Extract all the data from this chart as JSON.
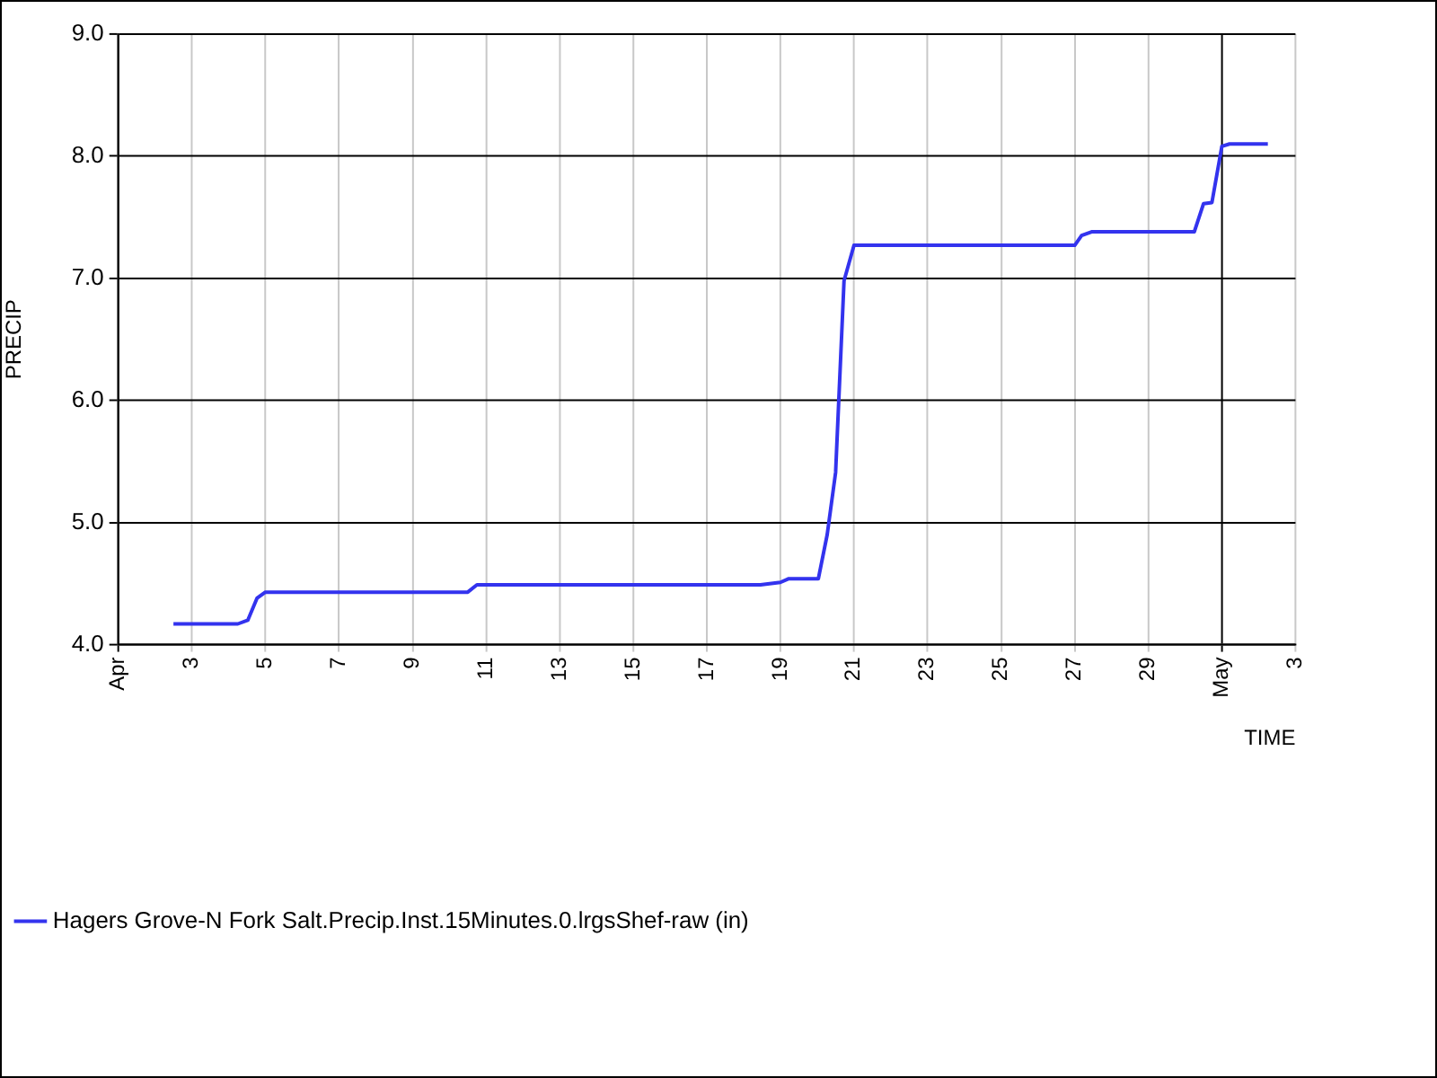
{
  "chart_data": {
    "type": "line",
    "xlabel": "TIME",
    "ylabel": "PRECIP",
    "x": [
      "--04-02T12:00",
      "--04-04T06:00",
      "--04-04T12:30",
      "--04-04T18:30",
      "--04-05T00:00",
      "--04-10T12:00",
      "--04-10T18:00",
      "--04-18T11:00",
      "--04-19T00:00",
      "--04-19T05:30",
      "--04-20T00:45",
      "--04-20T06:30",
      "--04-20T12:00",
      "--04-20T17:30",
      "--04-21T00:00",
      "--04-27T00:00",
      "--04-27T04:30",
      "--04-27T11:00",
      "--04-30T06:00",
      "--04-30T12:00",
      "--04-30T17:30",
      "--05-01T00:00",
      "--05-01T05:00",
      "--05-02T06:00"
    ],
    "series": [
      {
        "name": "Hagers Grove-N Fork Salt.Precip.Inst.15Minutes.0.lrgsShef-raw (in)",
        "color": "#3333ee",
        "values": [
          4.17,
          4.17,
          4.2,
          4.38,
          4.43,
          4.43,
          4.49,
          4.49,
          4.51,
          4.54,
          4.54,
          4.9,
          5.41,
          6.98,
          7.27,
          7.27,
          7.35,
          7.38,
          7.38,
          7.61,
          7.62,
          8.08,
          8.1,
          8.1
        ]
      }
    ],
    "xlim": [
      "--04-01",
      "--05-03"
    ],
    "xticks": [
      {
        "value": "--04-01",
        "label": "Apr"
      },
      {
        "value": "--04-03",
        "label": "3"
      },
      {
        "value": "--04-05",
        "label": "5"
      },
      {
        "value": "--04-07",
        "label": "7"
      },
      {
        "value": "--04-09",
        "label": "9"
      },
      {
        "value": "--04-11",
        "label": "11"
      },
      {
        "value": "--04-13",
        "label": "13"
      },
      {
        "value": "--04-15",
        "label": "15"
      },
      {
        "value": "--04-17",
        "label": "17"
      },
      {
        "value": "--04-19",
        "label": "19"
      },
      {
        "value": "--04-21",
        "label": "21"
      },
      {
        "value": "--04-23",
        "label": "23"
      },
      {
        "value": "--04-25",
        "label": "25"
      },
      {
        "value": "--04-27",
        "label": "27"
      },
      {
        "value": "--04-29",
        "label": "29"
      },
      {
        "value": "--05-01",
        "label": "May"
      },
      {
        "value": "--05-03",
        "label": "3"
      }
    ],
    "ylim": [
      4,
      9
    ],
    "yticks": [
      {
        "value": 4,
        "label": "4.0"
      },
      {
        "value": 5,
        "label": "5.0"
      },
      {
        "value": 6,
        "label": "6.0"
      },
      {
        "value": 7,
        "label": "7.0"
      },
      {
        "value": 8,
        "label": "8.0"
      },
      {
        "value": 9,
        "label": "9.0"
      }
    ],
    "grid": true,
    "legend": "bottom left",
    "marker": "none",
    "line_style": "solid"
  }
}
